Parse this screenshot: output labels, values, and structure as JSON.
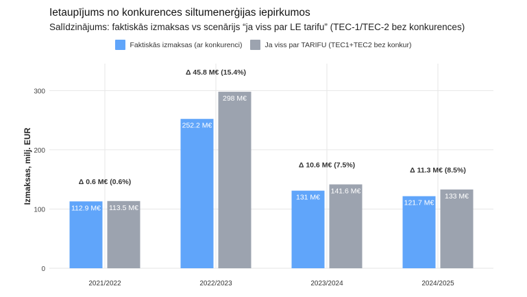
{
  "title": "Ietaupījums no konkurences siltumenerģijas iepirkumos",
  "subtitle": "Salīdzinājums: faktiskās izmaksas vs scenārijs “ja viss par LE tarifu” (TEC-1/TEC-2 bez konkurences)",
  "colors": {
    "series1": "#60a5fa",
    "series2": "#9ca3af",
    "grid": "#e6e6e6"
  },
  "chart_data": {
    "type": "bar",
    "title": "Ietaupījums no konkurences siltumenerģijas iepirkumos",
    "subtitle": "Salīdzinājums: faktiskās izmaksas vs scenārijs “ja viss par LE tarifu” (TEC-1/TEC-2 bez konkurences)",
    "xlabel": "",
    "ylabel": "Izmaksas, milj. EUR",
    "ylim": [
      0,
      330
    ],
    "yticks": [
      0,
      100,
      200,
      300
    ],
    "grid": true,
    "legend_position": "top",
    "categories": [
      "2021/2022",
      "2022/2023",
      "2023/2024",
      "2024/2025"
    ],
    "series": [
      {
        "name": "Faktiskās izmaksas (ar konkurenci)",
        "values": [
          112.9,
          252.2,
          131,
          121.7
        ],
        "labels": [
          "112.9 M€",
          "252.2 M€",
          "131 M€",
          "121.7 M€"
        ]
      },
      {
        "name": "Ja viss par TARIFU (TEC1+TEC2 bez konkur)",
        "values": [
          113.5,
          298,
          141.6,
          133
        ],
        "labels": [
          "113.5 M€",
          "298 M€",
          "141.6 M€",
          "133 M€"
        ]
      }
    ],
    "annotations": [
      "Δ 0.6 M€ (0.6%)",
      "Δ 45.8 M€ (15.4%)",
      "Δ 10.6 M€ (7.5%)",
      "Δ 11.3 M€ (8.5%)"
    ]
  }
}
